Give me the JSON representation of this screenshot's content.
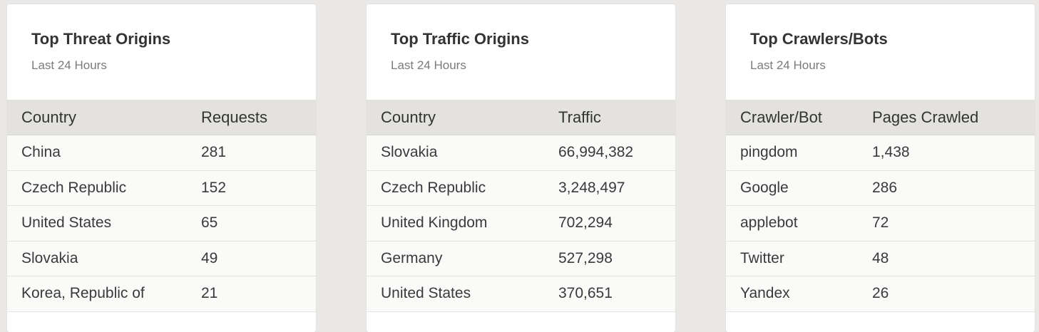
{
  "cards": [
    {
      "title": "Top Threat Origins",
      "subtitle": "Last 24 Hours",
      "table": {
        "columns": [
          "Country",
          "Requests"
        ],
        "rows": [
          [
            "China",
            "281"
          ],
          [
            "Czech Republic",
            "152"
          ],
          [
            "United States",
            "65"
          ],
          [
            "Slovakia",
            "49"
          ],
          [
            "Korea, Republic of",
            "21"
          ]
        ]
      }
    },
    {
      "title": "Top Traffic Origins",
      "subtitle": "Last 24 Hours",
      "table": {
        "columns": [
          "Country",
          "Traffic"
        ],
        "rows": [
          [
            "Slovakia",
            "66,994,382"
          ],
          [
            "Czech Republic",
            "3,248,497"
          ],
          [
            "United Kingdom",
            "702,294"
          ],
          [
            "Germany",
            "527,298"
          ],
          [
            "United States",
            "370,651"
          ]
        ]
      }
    },
    {
      "title": "Top Crawlers/Bots",
      "subtitle": "Last 24 Hours",
      "table": {
        "columns": [
          "Crawler/Bot",
          "Pages Crawled"
        ],
        "rows": [
          [
            "pingdom",
            "1,438"
          ],
          [
            "Google",
            "286"
          ],
          [
            "applebot",
            "72"
          ],
          [
            "Twitter",
            "48"
          ],
          [
            "Yandex",
            "26"
          ]
        ]
      }
    }
  ]
}
